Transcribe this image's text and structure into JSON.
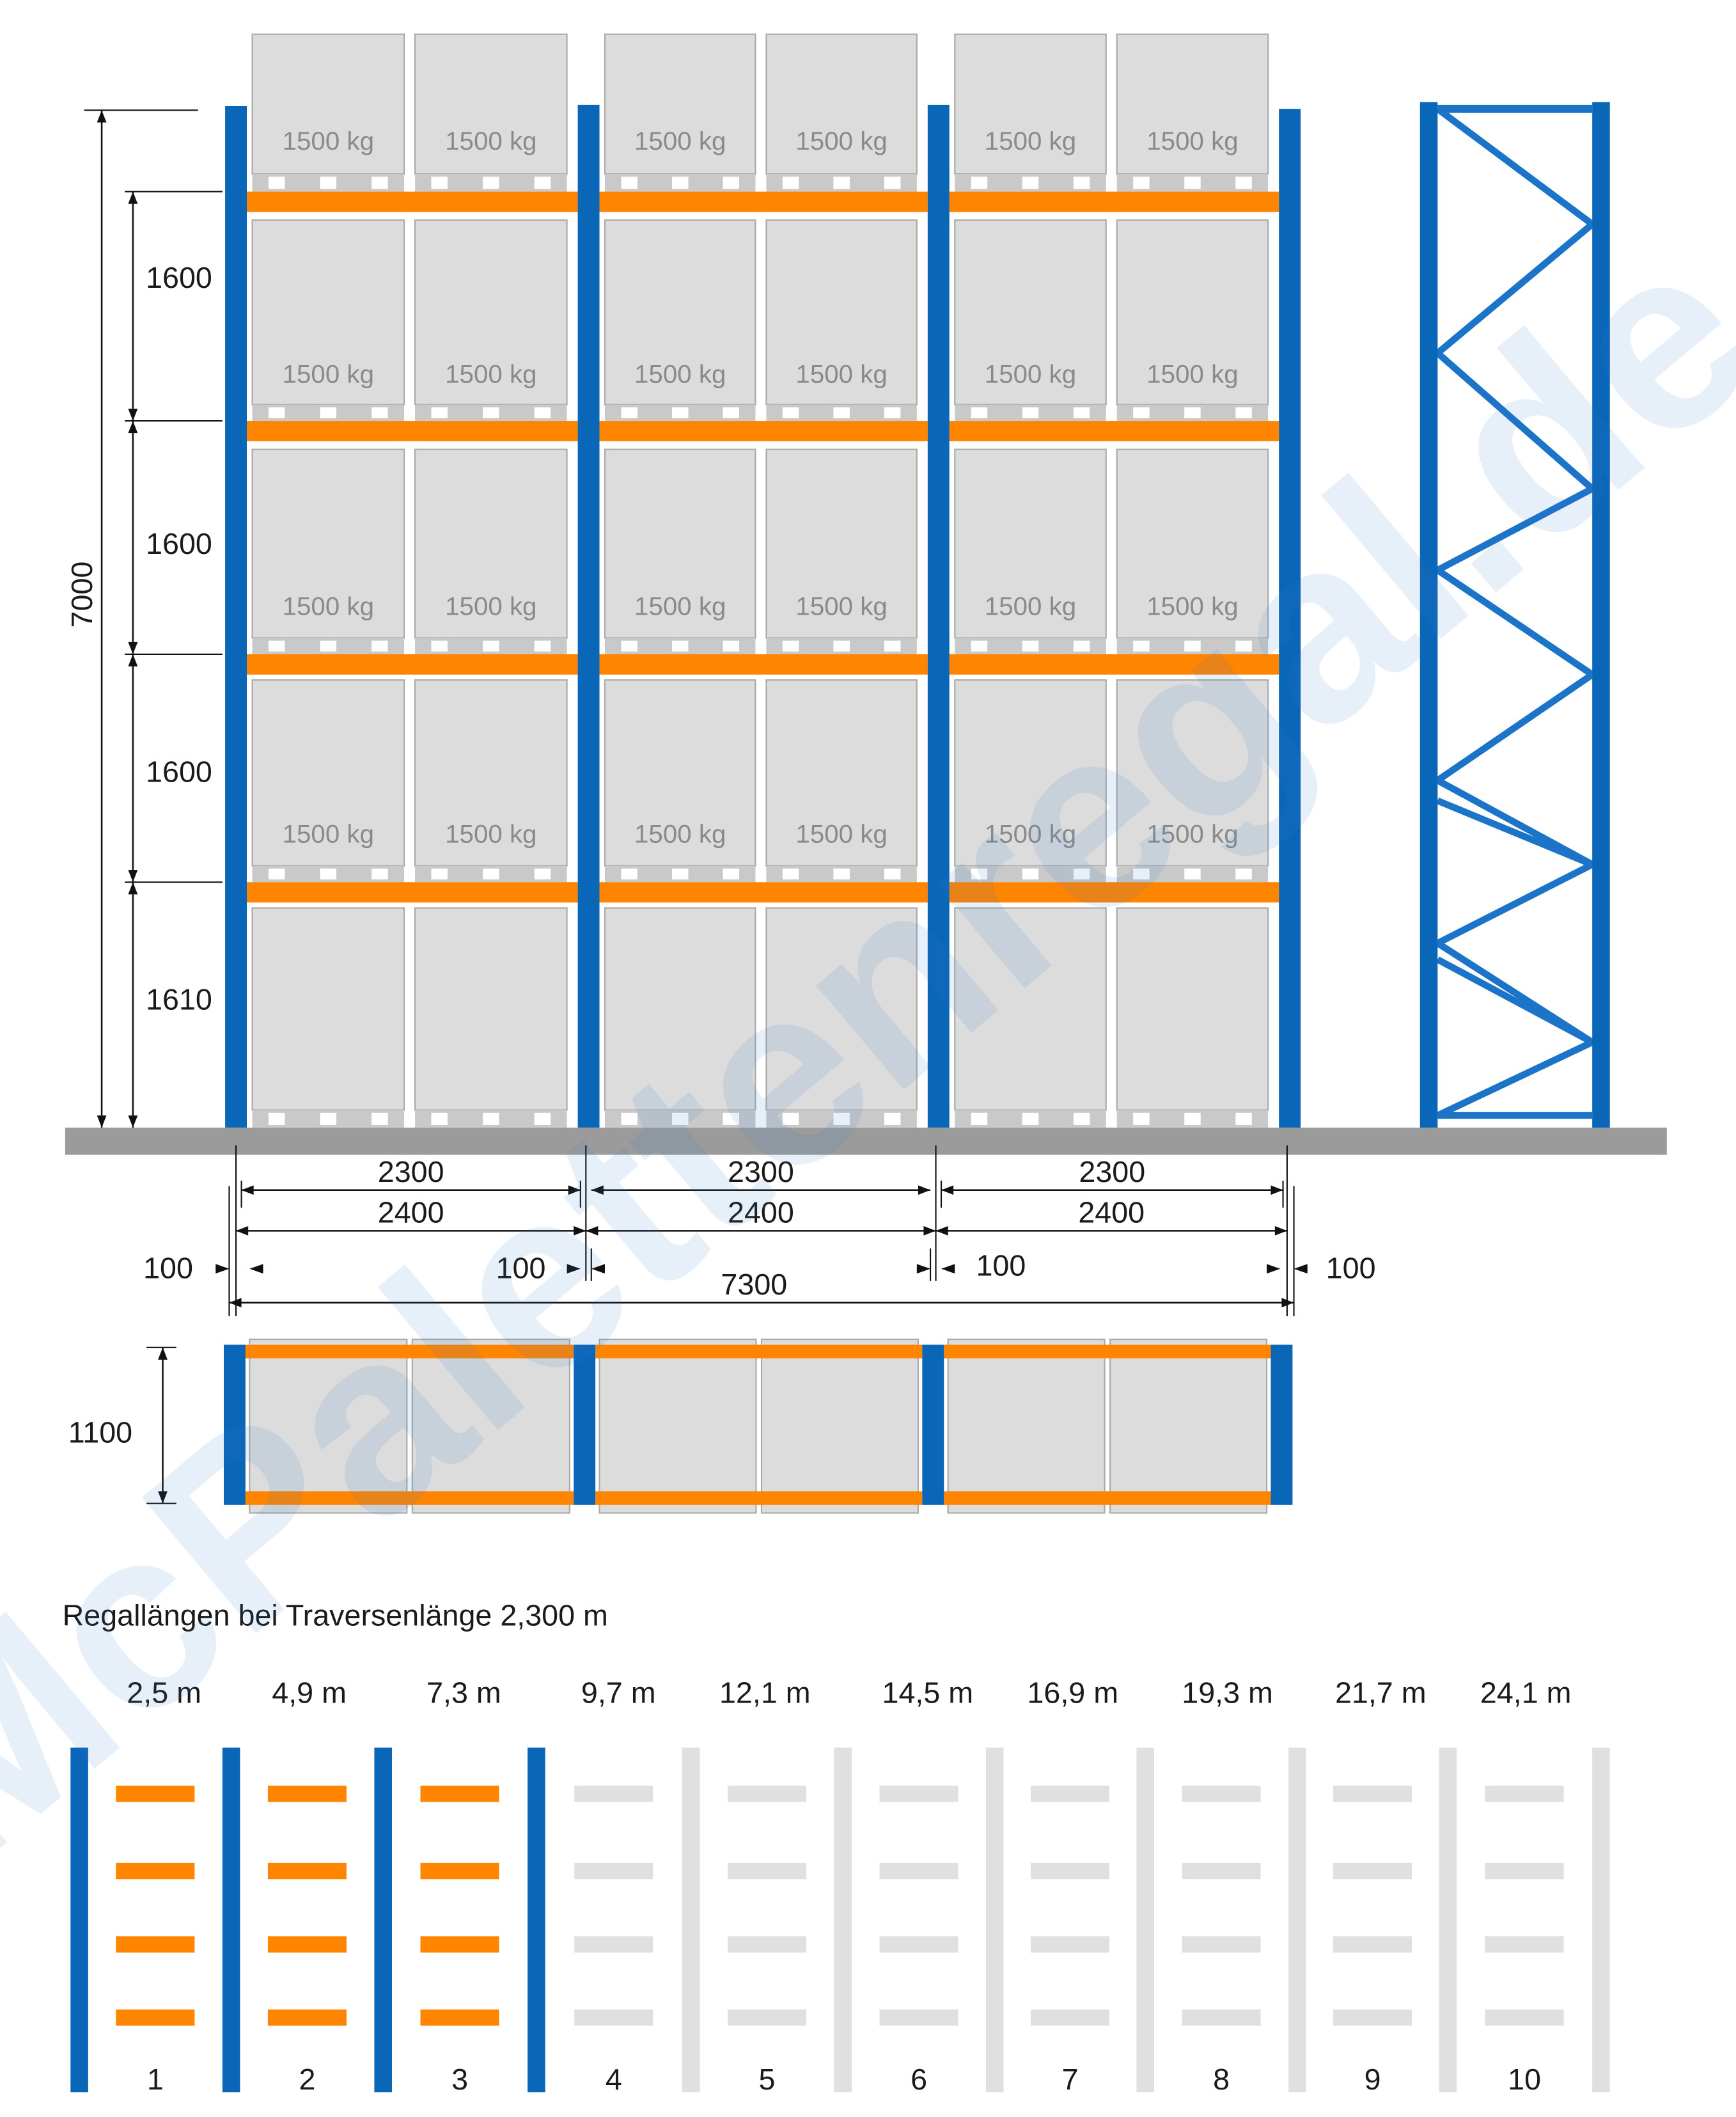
{
  "colors": {
    "upright": "#0a66b7",
    "beam": "#ff8500",
    "pallet": "#dcdcdc",
    "pallet_stroke": "#a9a9a9",
    "floor": "#9b9b9b",
    "inactive": "#e0e0e0",
    "dim_line": "#111111",
    "watermark": "#3d7fd0"
  },
  "front_view": {
    "load_label": "1500 kg",
    "total_height": "7000",
    "level_heights": [
      "1600",
      "1600",
      "1600",
      "1610"
    ],
    "bay_inner_widths": [
      "2300",
      "2300",
      "2300"
    ],
    "bay_widths": [
      "2400",
      "2400",
      "2400"
    ],
    "upright_widths": [
      "100",
      "100",
      "100",
      "100"
    ],
    "total_length": "7300"
  },
  "top_view": {
    "depth": "1100"
  },
  "lengths_section": {
    "title": "Regallängen bei Traversenlänge 2,300 m",
    "lengths": [
      "2,5 m",
      "4,9 m",
      "7,3 m",
      "9,7 m",
      "12,1 m",
      "14,5 m",
      "16,9 m",
      "19,3 m",
      "21,7 m",
      "24,1 m"
    ],
    "numbers": [
      "1",
      "2",
      "3",
      "4",
      "5",
      "6",
      "7",
      "8",
      "9",
      "10"
    ],
    "active_count": 3
  },
  "watermark": "McPalettenregal.de",
  "icons": {
    "upright_frame": "x-braced-upright-frame-icon"
  }
}
